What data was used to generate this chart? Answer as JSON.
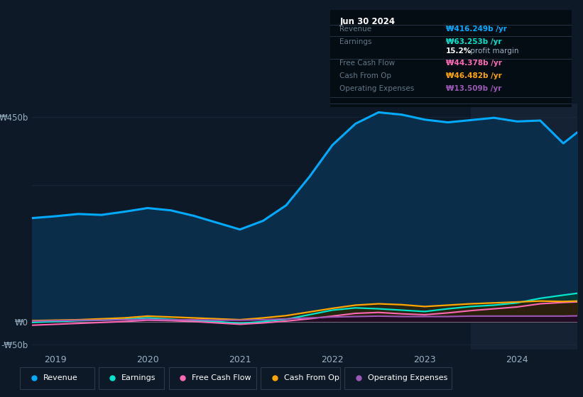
{
  "bg_color": "#0d1926",
  "plot_bg_color": "#0d1926",
  "grid_color": "#1a2d40",
  "x_years": [
    2018.75,
    2019.0,
    2019.25,
    2019.5,
    2019.75,
    2020.0,
    2020.25,
    2020.5,
    2020.75,
    2021.0,
    2021.25,
    2021.5,
    2021.75,
    2022.0,
    2022.25,
    2022.5,
    2022.75,
    2023.0,
    2023.25,
    2023.5,
    2023.75,
    2024.0,
    2024.25,
    2024.5,
    2024.65
  ],
  "revenue": [
    228,
    232,
    237,
    235,
    242,
    250,
    245,
    233,
    218,
    203,
    222,
    256,
    318,
    388,
    435,
    460,
    455,
    444,
    438,
    443,
    448,
    440,
    442,
    392,
    416
  ],
  "earnings": [
    -1,
    1,
    3,
    4,
    6,
    9,
    6,
    3,
    1,
    -3,
    1,
    6,
    16,
    26,
    31,
    29,
    26,
    23,
    29,
    34,
    37,
    42,
    52,
    59,
    63
  ],
  "free_cash_flow": [
    -7,
    -5,
    -3,
    -1,
    1,
    4,
    3,
    1,
    -2,
    -5,
    -2,
    2,
    7,
    13,
    19,
    21,
    18,
    16,
    20,
    25,
    29,
    33,
    40,
    43,
    44
  ],
  "cash_from_op": [
    3,
    4,
    5,
    7,
    9,
    13,
    11,
    9,
    7,
    5,
    9,
    14,
    22,
    30,
    37,
    40,
    38,
    34,
    37,
    40,
    42,
    44,
    46,
    45,
    46
  ],
  "operating_expenses": [
    2,
    3,
    4,
    4,
    5,
    6,
    5,
    5,
    4,
    4,
    5,
    7,
    9,
    11,
    12,
    13,
    12,
    12,
    12,
    13,
    13,
    13,
    13,
    13,
    13.5
  ],
  "revenue_color": "#00aaff",
  "revenue_fill_color": "#0a2e4a",
  "earnings_color": "#00e5cc",
  "fcf_color": "#ff69b4",
  "cop_color": "#ffa500",
  "opex_color": "#9b59b6",
  "ylim": [
    -60,
    480
  ],
  "ytick_positions": [
    -50,
    0,
    450
  ],
  "ytick_labels": [
    "-₩50b",
    "₩0",
    "₩450b"
  ],
  "xlabel_years": [
    2019,
    2020,
    2021,
    2022,
    2023,
    2024
  ],
  "xlim_start": 2018.75,
  "xlim_end": 2024.65,
  "highlight_x_start": 2023.5,
  "highlight_x_end": 2024.65,
  "highlight_color": "#142234",
  "text_color": "#9ab0c4",
  "text_color_dim": "#607888",
  "info_box_bg": "#040c14",
  "info_box_title": "Jun 30 2024",
  "info_box_rows": [
    {
      "label": "Revenue",
      "value": "₩416.249b /yr",
      "color": "#00aaff",
      "separator_before": true,
      "is_margin": false
    },
    {
      "label": "Earnings",
      "value": "₩63.253b /yr",
      "color": "#00e5cc",
      "separator_before": true,
      "is_margin": false
    },
    {
      "label": "",
      "value": "15.2% profit margin",
      "color": "white",
      "separator_before": false,
      "is_margin": true
    },
    {
      "label": "Free Cash Flow",
      "value": "₩44.378b /yr",
      "color": "#ff69b4",
      "separator_before": true,
      "is_margin": false
    },
    {
      "label": "Cash From Op",
      "value": "₩46.482b /yr",
      "color": "#ffa500",
      "separator_before": false,
      "is_margin": false
    },
    {
      "label": "Operating Expenses",
      "value": "₩13.509b /yr",
      "color": "#9b59b6",
      "separator_before": false,
      "is_margin": false
    }
  ],
  "legend_items": [
    {
      "label": "Revenue",
      "color": "#00aaff"
    },
    {
      "label": "Earnings",
      "color": "#00e5cc"
    },
    {
      "label": "Free Cash Flow",
      "color": "#ff69b4"
    },
    {
      "label": "Cash From Op",
      "color": "#ffa500"
    },
    {
      "label": "Operating Expenses",
      "color": "#9b59b6"
    }
  ]
}
